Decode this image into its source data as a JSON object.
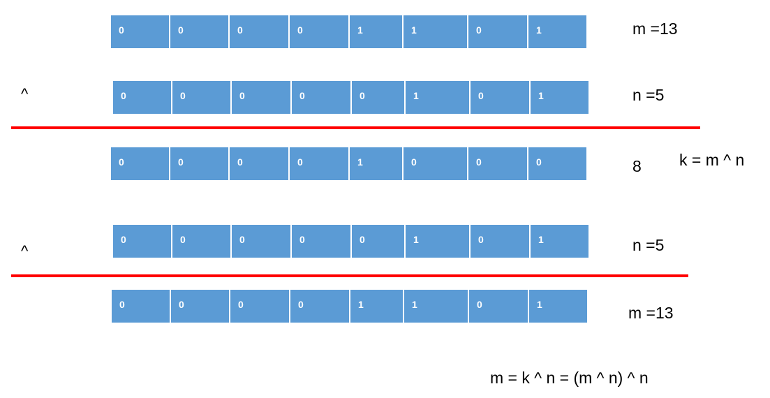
{
  "colors": {
    "cell_fill": "#5b9bd5",
    "cell_text": "#ffffff",
    "rule": "#ff0000",
    "text": "#000000"
  },
  "rows": [
    {
      "bits": [
        "0",
        "0",
        "0",
        "0",
        "1",
        "1",
        "0",
        "1"
      ],
      "label": "m =13"
    },
    {
      "bits": [
        "0",
        "0",
        "0",
        "0",
        "0",
        "1",
        "0",
        "1"
      ],
      "label": "n =5",
      "operator": "^"
    },
    {
      "bits": [
        "0",
        "0",
        "0",
        "0",
        "1",
        "0",
        "0",
        "0"
      ],
      "label": "8",
      "note": "k = m ^ n"
    },
    {
      "bits": [
        "0",
        "0",
        "0",
        "0",
        "0",
        "1",
        "0",
        "1"
      ],
      "label": "n =5",
      "operator": "^"
    },
    {
      "bits": [
        "0",
        "0",
        "0",
        "0",
        "1",
        "1",
        "0",
        "1"
      ],
      "label": "m =13"
    }
  ],
  "footer": "m = k ^ n = (m ^ n) ^ n"
}
